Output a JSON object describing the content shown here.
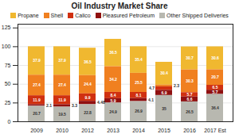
{
  "chart_data": {
    "type": "bar",
    "title": "Oil Industry Market Share",
    "categories": [
      "2009",
      "2010",
      "2012",
      "2013",
      "2014",
      "2015",
      "2016",
      "2017 Est"
    ],
    "series": [
      {
        "name": "Propane",
        "color": "#F0B830",
        "values": [
          37.9,
          37.9,
          36.5,
          36.5,
          35.4,
          30.4,
          30.7,
          30.6
        ]
      },
      {
        "name": "Shell",
        "color": "#F08020",
        "values": [
          27.4,
          27.4,
          24.4,
          34.2,
          25.5,
          2.3,
          30.3,
          20.7
        ]
      },
      {
        "name": "Calico",
        "color": "#D03010",
        "values": [
          11.9,
          11.9,
          9.9,
          8.4,
          8.1,
          4.7,
          5.7,
          6.5
        ]
      },
      {
        "name": "Pleasured Petroleum",
        "color": "#901010",
        "values": [
          2.1,
          3.3,
          4.48,
          5.9,
          4.1,
          6.9,
          6.6,
          5.7
        ]
      },
      {
        "name": "Other Shipped Deliveries",
        "color": "#B8B8B0",
        "values": [
          20.7,
          19.5,
          22.8,
          24.9,
          26.9,
          35,
          26.5,
          36.4
        ]
      }
    ],
    "stacked": true,
    "data_labels": true,
    "ylim": [
      0,
      130
    ],
    "yticks": [
      0,
      25,
      50,
      75,
      100,
      125
    ],
    "grid": true,
    "legend": "top"
  }
}
